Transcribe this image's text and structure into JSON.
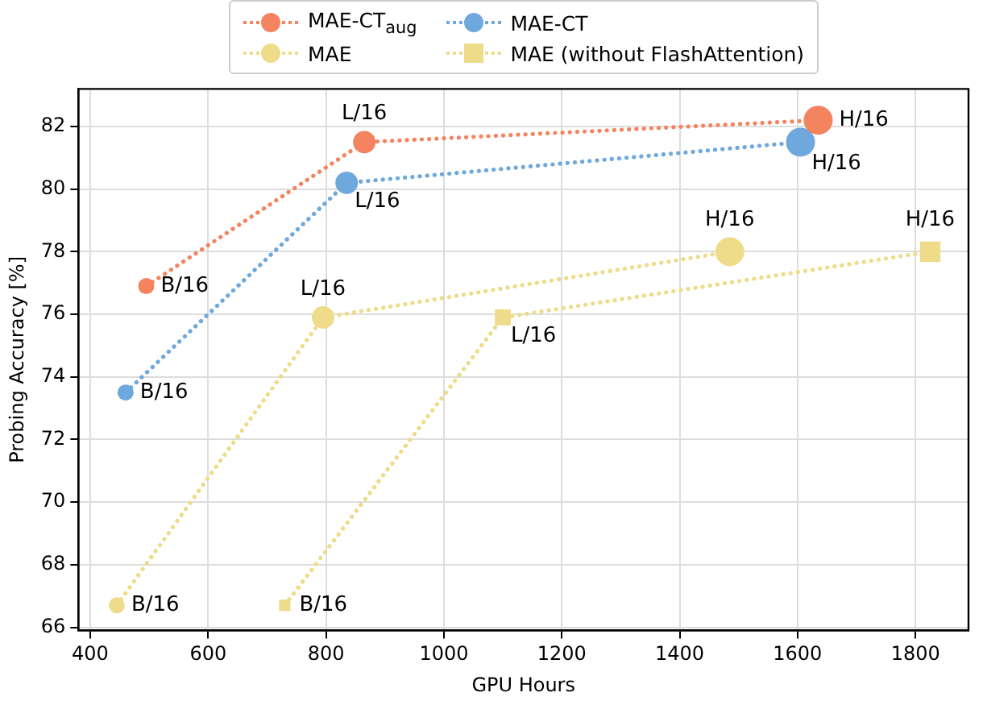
{
  "chart_data": {
    "type": "line",
    "xlabel": "GPU Hours",
    "ylabel": "Probing Accuracy [%]",
    "series": [
      {
        "name": "MAE-CT$_{aug}$",
        "color": "#f4845f",
        "x": [
          495,
          865,
          1635
        ],
        "values": [
          76.9,
          81.5,
          82.2
        ],
        "marker": "circle"
      },
      {
        "name": "MAE-CT",
        "color": "#6fa8dc",
        "x": [
          460,
          835,
          1605
        ],
        "values": [
          73.5,
          80.2,
          81.5
        ],
        "marker": "circle"
      },
      {
        "name": "MAE",
        "color": "#eedc8a",
        "x": [
          445,
          795,
          1485
        ],
        "values": [
          66.7,
          75.9,
          78.0
        ],
        "marker": "circle"
      },
      {
        "name": "MAE (without FlashAttention)",
        "color": "#eedc8a",
        "x": [
          730,
          1100,
          1825
        ],
        "values": [
          66.7,
          75.9,
          78.0
        ],
        "marker": "square"
      }
    ],
    "annotations": [
      {
        "text": "B/16",
        "x": 495,
        "y": 76.9
      },
      {
        "text": "L/16",
        "x": 865,
        "y": 81.5
      },
      {
        "text": "H/16",
        "x": 1635,
        "y": 82.2
      },
      {
        "text": "B/16",
        "x": 460,
        "y": 73.5
      },
      {
        "text": "L/16",
        "x": 835,
        "y": 80.2
      },
      {
        "text": "H/16",
        "x": 1605,
        "y": 81.5
      },
      {
        "text": "B/16",
        "x": 445,
        "y": 66.7
      },
      {
        "text": "L/16",
        "x": 795,
        "y": 75.9
      },
      {
        "text": "H/16",
        "x": 1485,
        "y": 78.0
      },
      {
        "text": "B/16",
        "x": 730,
        "y": 66.7
      },
      {
        "text": "L/16",
        "x": 1100,
        "y": 75.9
      },
      {
        "text": "H/16",
        "x": 1825,
        "y": 78.0
      }
    ],
    "xlim": [
      380,
      1890
    ],
    "xticks": [
      400,
      600,
      800,
      1000,
      1200,
      1400,
      1600,
      1800
    ],
    "ylim": [
      65.9,
      83.2
    ],
    "yticks": [
      66,
      68,
      70,
      72,
      74,
      76,
      78,
      80,
      82
    ],
    "grid": true,
    "legend": "top",
    "line_style": "dotted"
  }
}
